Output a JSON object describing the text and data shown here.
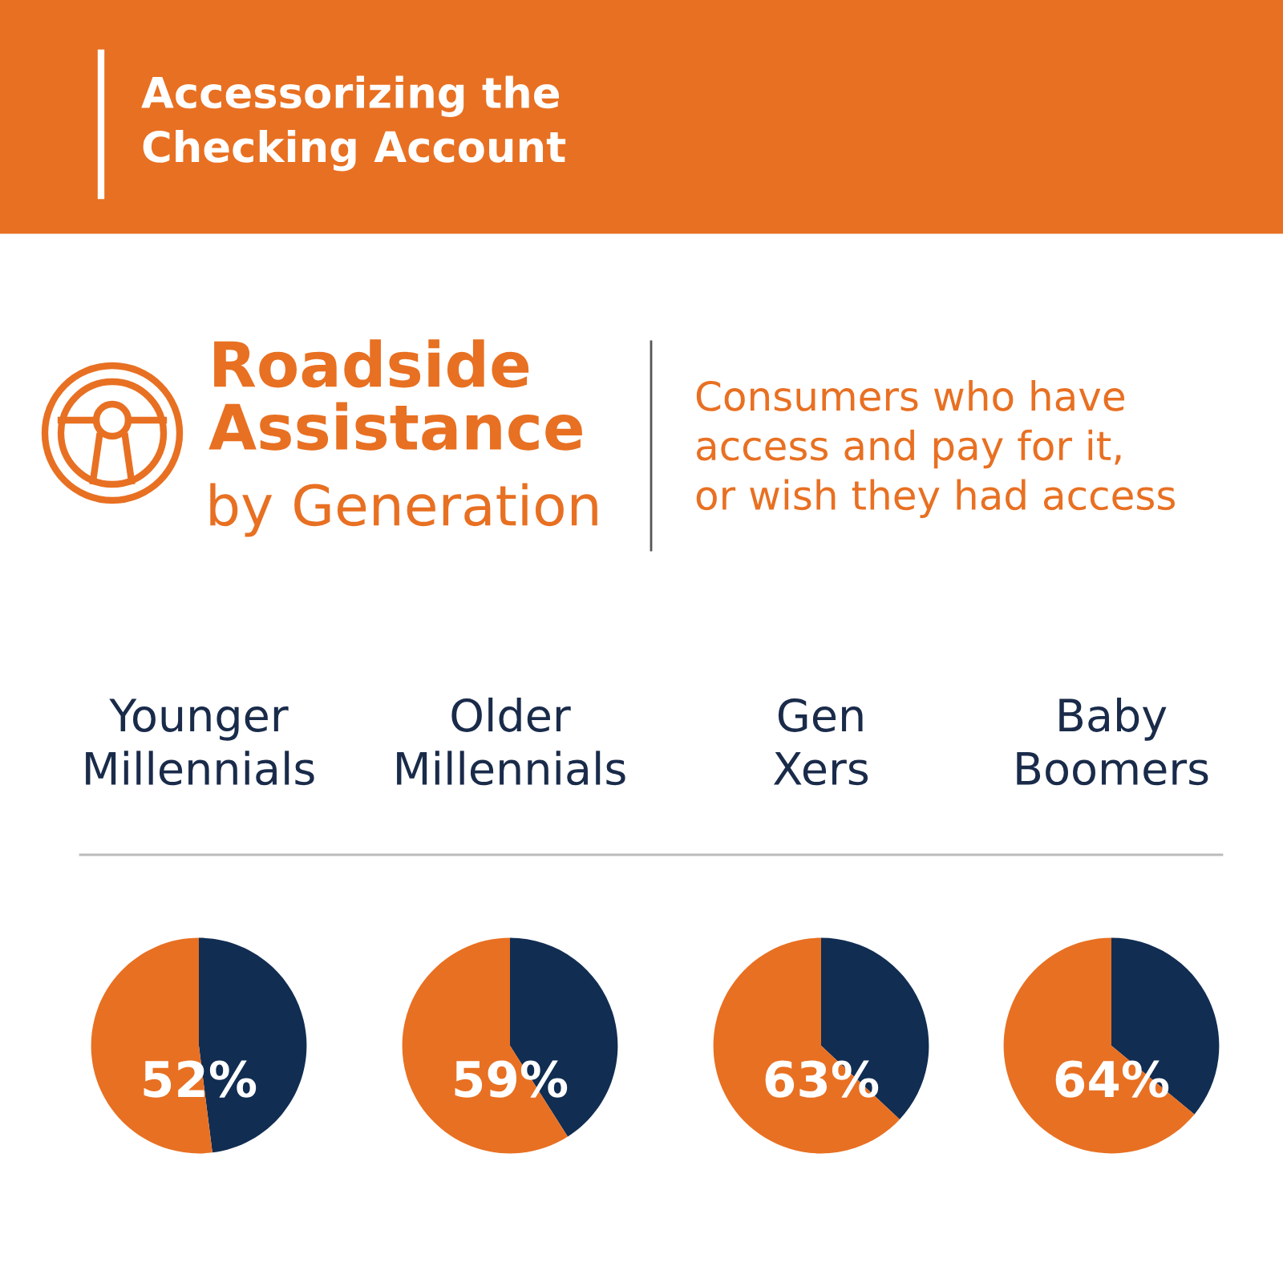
{
  "chart_data": [
    {
      "type": "other",
      "title": "Accessorizing the\nChecking Account",
      "annotations": [
        "Roadside\nAssistance",
        "by Generation",
        "Consumers who have\naccess and pay for it,\nor wish they had access"
      ]
    },
    {
      "type": "pie",
      "title": "Younger\nMillennials",
      "categories": [
        null,
        null
      ],
      "values": [
        48,
        52
      ],
      "colors": [
        "#112d52",
        "#e87022"
      ],
      "value_labels": [
        null,
        "52%"
      ]
    },
    {
      "type": "pie",
      "title": "Older\nMillennials",
      "categories": [
        null,
        null
      ],
      "values": [
        41,
        59
      ],
      "colors": [
        "#112d52",
        "#e87022"
      ],
      "value_labels": [
        null,
        "59%"
      ]
    },
    {
      "type": "pie",
      "title": "Gen\nXers",
      "categories": [
        null,
        null
      ],
      "values": [
        37,
        63
      ],
      "colors": [
        "#112d52",
        "#e87022"
      ],
      "value_labels": [
        null,
        "63%"
      ]
    },
    {
      "type": "pie",
      "title": "Baby\nBoomers",
      "categories": [
        null,
        null
      ],
      "values": [
        36,
        64
      ],
      "colors": [
        "#112d52",
        "#e87022"
      ],
      "value_labels": [
        null,
        "64%"
      ]
    }
  ]
}
